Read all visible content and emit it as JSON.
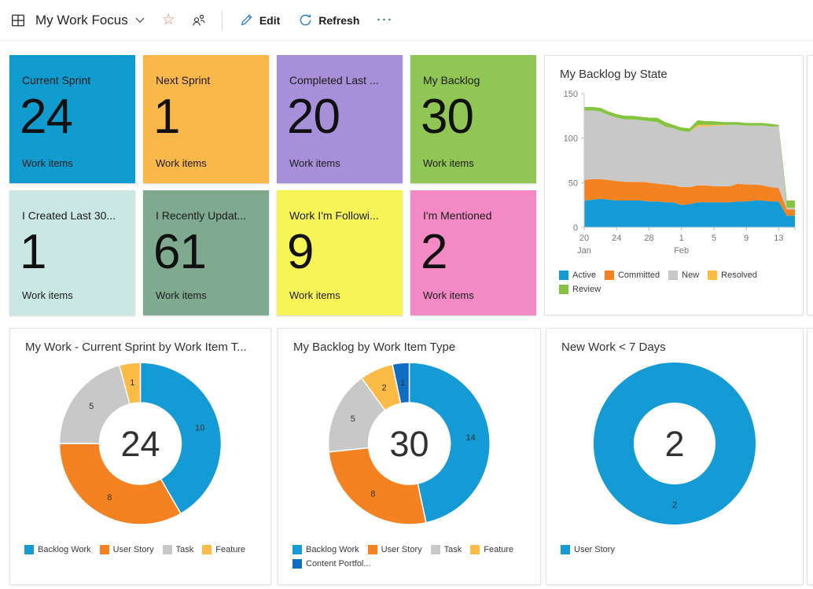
{
  "header": {
    "title": "My Work Focus",
    "edit_label": "Edit",
    "refresh_label": "Refresh",
    "more_glyph": "···",
    "accent_color": "#2b7cd3",
    "star_color": "#e8825d"
  },
  "tiles": [
    {
      "title": "Current Sprint",
      "value": "24",
      "subtitle": "Work items",
      "bg": "#109CCF"
    },
    {
      "title": "Next Sprint",
      "value": "1",
      "subtitle": "Work items",
      "bg": "#FAB74A"
    },
    {
      "title": "Completed Last ...",
      "value": "20",
      "subtitle": "Work items",
      "bg": "#A78FD9"
    },
    {
      "title": "My Backlog",
      "value": "30",
      "subtitle": "Work items",
      "bg": "#90C653"
    },
    {
      "title": "I Created Last 30...",
      "value": "1",
      "subtitle": "Work items",
      "bg": "#CBE7E3"
    },
    {
      "title": "I Recently Updat...",
      "value": "61",
      "subtitle": "Work items",
      "bg": "#7FAA90"
    },
    {
      "title": "Work I'm Followi...",
      "value": "9",
      "subtitle": "Work items",
      "bg": "#F6F457"
    },
    {
      "title": "I'm Mentioned",
      "value": "2",
      "subtitle": "Work items",
      "bg": "#F48AC5"
    }
  ],
  "chart_data": [
    {
      "type": "area",
      "stacked": true,
      "title": "My Backlog by State",
      "grid": false,
      "legend_position": "bottom",
      "ylim": [
        0,
        150
      ],
      "yticks": [
        0,
        50,
        100,
        150
      ],
      "x": [
        "Jan 20",
        "Jan 21",
        "Jan 22",
        "Jan 23",
        "Jan 24",
        "Jan 25",
        "Jan 26",
        "Jan 27",
        "Jan 28",
        "Jan 29",
        "Jan 30",
        "Jan 31",
        "Feb 1",
        "Feb 2",
        "Feb 3",
        "Feb 4",
        "Feb 5",
        "Feb 6",
        "Feb 7",
        "Feb 8",
        "Feb 9",
        "Feb 10",
        "Feb 11",
        "Feb 12",
        "Feb 13",
        "Feb 14",
        "Feb 15"
      ],
      "xticks": [
        {
          "index": 0,
          "label": "20",
          "month": "Jan"
        },
        {
          "index": 4,
          "label": "24"
        },
        {
          "index": 8,
          "label": "28"
        },
        {
          "index": 12,
          "label": "1",
          "month": "Feb"
        },
        {
          "index": 16,
          "label": "5"
        },
        {
          "index": 20,
          "label": "9"
        },
        {
          "index": 24,
          "label": "13"
        }
      ],
      "series": [
        {
          "name": "Active",
          "color": "#149BD5",
          "values": [
            30,
            31,
            32,
            31,
            30,
            30,
            30,
            30,
            29,
            29,
            28,
            28,
            25,
            26,
            28,
            28,
            28,
            28,
            28,
            29,
            29,
            30,
            30,
            29,
            29,
            13,
            13
          ]
        },
        {
          "name": "Committed",
          "color": "#F58220",
          "values": [
            23,
            23,
            22,
            22,
            22,
            21,
            21,
            21,
            21,
            20,
            20,
            19,
            20,
            19,
            19,
            19,
            18,
            18,
            18,
            20,
            19,
            18,
            17,
            16,
            15,
            7,
            7
          ]
        },
        {
          "name": "New",
          "color": "#C8C8C8",
          "values": [
            78,
            77,
            76,
            73,
            71,
            70,
            70,
            69,
            69,
            69,
            65,
            64,
            63,
            62,
            66,
            66,
            68,
            68,
            69,
            66,
            66,
            66,
            67,
            68,
            69,
            2,
            2
          ]
        },
        {
          "name": "Resolved",
          "color": "#FBBB45",
          "values": [
            0,
            0,
            0,
            0,
            0,
            0,
            0,
            0,
            0,
            0,
            0,
            0,
            0,
            0,
            2,
            2,
            1,
            1,
            0,
            0,
            0,
            0,
            0,
            0,
            0,
            0,
            0
          ]
        },
        {
          "name": "Review",
          "color": "#85C441",
          "values": [
            4,
            4,
            4,
            4,
            4,
            4,
            4,
            4,
            4,
            5,
            5,
            4,
            4,
            4,
            5,
            4,
            4,
            3,
            3,
            3,
            3,
            3,
            3,
            3,
            2,
            8,
            8
          ]
        }
      ]
    },
    {
      "type": "pie",
      "donut": true,
      "title": "My Work - Current Sprint by Work Item T...",
      "center_label": "24",
      "slices": [
        {
          "label": "Backlog Work",
          "value": 10,
          "color": "#149BD5"
        },
        {
          "label": "User Story",
          "value": 8,
          "color": "#F58220"
        },
        {
          "label": "Task",
          "value": 5,
          "color": "#C8C8C8"
        },
        {
          "label": "Feature",
          "value": 1,
          "color": "#FBBB45"
        }
      ]
    },
    {
      "type": "pie",
      "donut": true,
      "title": "My Backlog by Work Item Type",
      "center_label": "30",
      "slices": [
        {
          "label": "Backlog Work",
          "value": 14,
          "color": "#149BD5"
        },
        {
          "label": "User Story",
          "value": 8,
          "color": "#F58220"
        },
        {
          "label": "Task",
          "value": 5,
          "color": "#C8C8C8"
        },
        {
          "label": "Feature",
          "value": 2,
          "color": "#FBBB45"
        },
        {
          "label": "Content Portfol...",
          "value": 1,
          "color": "#0E6CC2"
        }
      ]
    },
    {
      "type": "pie",
      "donut": true,
      "title": "New Work < 7 Days",
      "center_label": "2",
      "slices": [
        {
          "label": "User Story",
          "value": 2,
          "color": "#149BD5"
        }
      ]
    }
  ]
}
